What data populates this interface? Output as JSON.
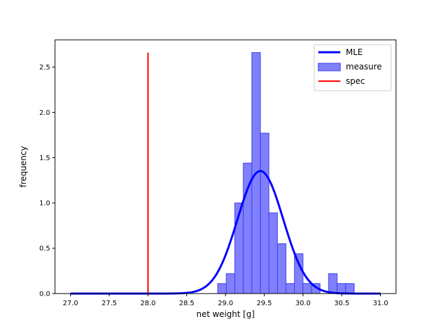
{
  "chart_data": {
    "type": "bar",
    "xlabel": "net weight [g]",
    "ylabel": "frequency",
    "xlim": [
      26.8,
      31.2
    ],
    "ylim": [
      0,
      2.8
    ],
    "xticks": [
      27.0,
      27.5,
      28.0,
      28.5,
      29.0,
      29.5,
      30.0,
      30.5,
      31.0
    ],
    "xtick_labels": [
      "27.0",
      "27.5",
      "28.0",
      "28.5",
      "29.0",
      "29.5",
      "30.0",
      "30.5",
      "31.0"
    ],
    "yticks": [
      0.0,
      0.5,
      1.0,
      1.5,
      2.0,
      2.5
    ],
    "ytick_labels": [
      "0.0",
      "0.5",
      "1.0",
      "1.5",
      "2.0",
      "2.5"
    ],
    "grid": false,
    "legend_placement": "top-right",
    "legend": [
      "MLE",
      "measure",
      "spec"
    ],
    "colors": {
      "mle": "#0000ff",
      "hist_fill": "#8080ff",
      "hist_edge": "#4040e8",
      "spec": "#ff0000"
    },
    "histogram": {
      "name": "measure",
      "bin_edges": [
        28.9,
        29.01,
        29.12,
        29.23,
        29.34,
        29.45,
        29.56,
        29.67,
        29.78,
        29.89,
        30.0,
        30.11,
        30.22,
        30.33,
        30.44,
        30.55,
        30.66
      ],
      "values": [
        0.11,
        0.22,
        1.0,
        1.44,
        2.66,
        1.77,
        0.89,
        0.55,
        0.11,
        0.44,
        0.11,
        0.11,
        0.0,
        0.22,
        0.11,
        0.11
      ]
    },
    "mle_curve": {
      "name": "MLE",
      "mean": 29.45,
      "std": 0.295,
      "x_range": [
        27.0,
        31.0
      ]
    },
    "spec_line": {
      "name": "spec",
      "x": 28.0,
      "y_range": [
        0,
        2.66
      ]
    }
  }
}
